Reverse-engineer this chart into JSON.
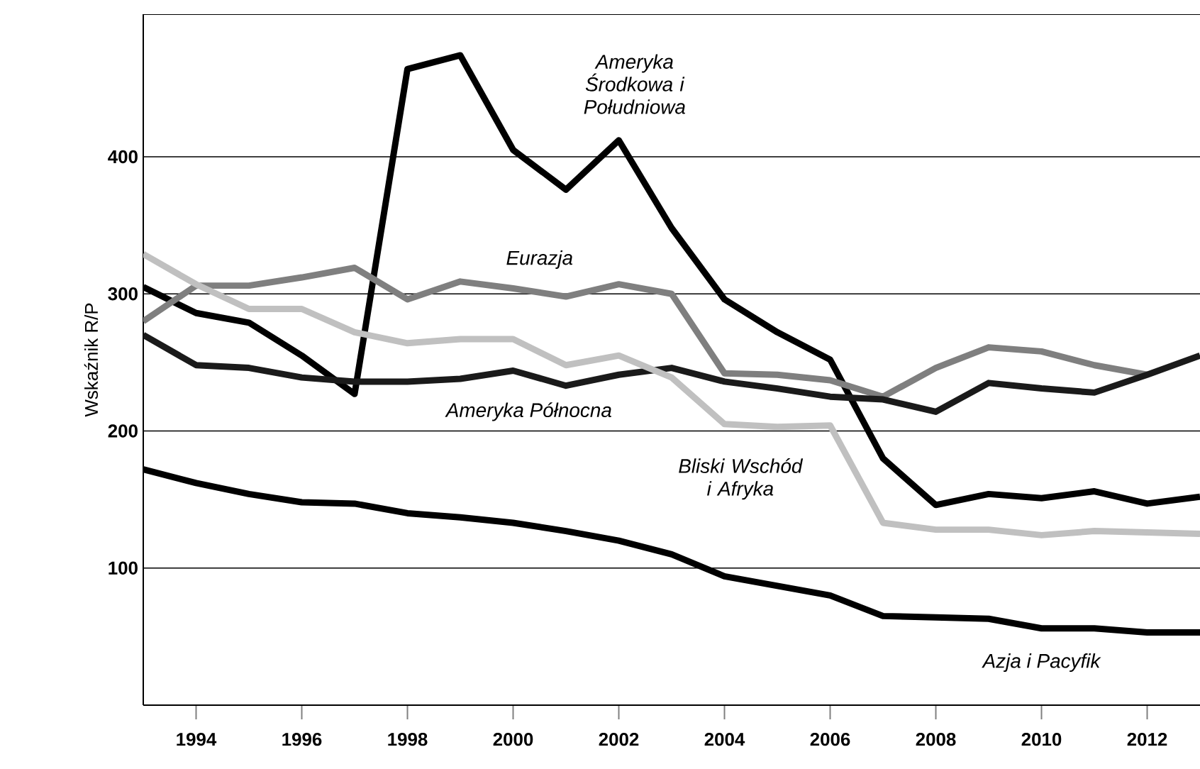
{
  "chart_data": {
    "type": "line",
    "ylabel": "Wskaźnik R/P",
    "x": [
      1993,
      1994,
      1995,
      1996,
      1997,
      1998,
      1999,
      2000,
      2001,
      2002,
      2003,
      2004,
      2005,
      2006,
      2007,
      2008,
      2009,
      2010,
      2011,
      2012,
      2013
    ],
    "series": [
      {
        "name": "Ameryka Środkowa i Południowa",
        "color": "#000000",
        "values": [
          305,
          286,
          279,
          255,
          227,
          464,
          474,
          405,
          376,
          412,
          348,
          296,
          272,
          252,
          180,
          146,
          154,
          151,
          156,
          147,
          152
        ]
      },
      {
        "name": "Eurazja",
        "color": "#7f7f7f",
        "values": [
          280,
          306,
          306,
          312,
          319,
          296,
          309,
          304,
          298,
          307,
          300,
          242,
          241,
          237,
          225,
          246,
          261,
          258,
          248,
          241,
          null
        ]
      },
      {
        "name": "Ameryka Północna",
        "color": "#1a1a1a",
        "values": [
          270,
          248,
          246,
          239,
          236,
          236,
          238,
          244,
          233,
          241,
          246,
          236,
          231,
          225,
          223,
          214,
          235,
          231,
          228,
          241,
          255
        ]
      },
      {
        "name": "Bliski Wschód i Afryka",
        "color": "#c0c0c0",
        "values": [
          329,
          307,
          289,
          289,
          272,
          264,
          267,
          267,
          248,
          255,
          239,
          205,
          203,
          204,
          133,
          128,
          128,
          124,
          127,
          126,
          125
        ]
      },
      {
        "name": "Azja i Pacyfik",
        "color": "#000000",
        "values": [
          172,
          162,
          154,
          148,
          147,
          140,
          137,
          133,
          127,
          120,
          110,
          94,
          87,
          80,
          65,
          64,
          63,
          56,
          56,
          53,
          53
        ]
      }
    ],
    "xlim": [
      1993,
      2013
    ],
    "ylim": [
      0,
      504
    ],
    "xticks": [
      1994,
      1996,
      1998,
      2000,
      2002,
      2004,
      2006,
      2008,
      2010,
      2012
    ],
    "yticks": [
      100,
      200,
      300,
      400
    ],
    "grid": "y"
  }
}
